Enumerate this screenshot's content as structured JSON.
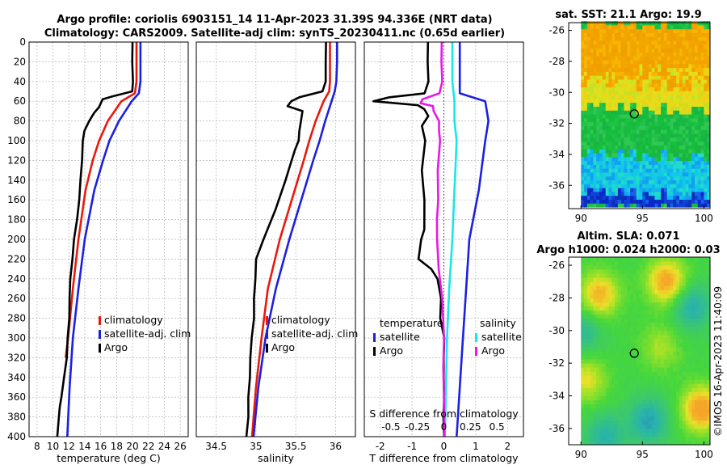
{
  "header": {
    "line1": "Argo profile: coriolis 6903151_14 11-Apr-2023 31.39S 94.336E (NRT data)",
    "line2": "Climatology: CARS2009. Satellite-adj clim: synTS_20230411.nc (0.65d earlier)"
  },
  "credit": "©IMOS 16-Apr-2023 11:40:09",
  "colors": {
    "argo": "#000000",
    "climatology": "#e8190c",
    "satellite": "#1c20e0",
    "s_satellite": "#19e6e6",
    "s_argo": "#e619e6",
    "grid": "#b4b4b4"
  },
  "chart_data": [
    {
      "id": "temperature",
      "type": "line",
      "xlabel": "temperature (deg C)",
      "ylabel": "depth",
      "xlim": [
        7,
        27
      ],
      "ylim": [
        0,
        400
      ],
      "y_inverted": true,
      "xticks": [
        8,
        10,
        12,
        14,
        16,
        18,
        20,
        22,
        24,
        26
      ],
      "yticks": [
        0,
        20,
        40,
        60,
        80,
        100,
        120,
        140,
        160,
        180,
        200,
        220,
        240,
        260,
        280,
        300,
        320,
        340,
        360,
        380,
        400
      ],
      "grid": true,
      "legend": {
        "position": "bottom-right",
        "entries": [
          "climatology",
          "satellite-adj. clim",
          "Argo"
        ]
      },
      "series": [
        {
          "name": "climatology",
          "color": "#e8190c",
          "depth": [
            0,
            20,
            40,
            52,
            60,
            80,
            100,
            120,
            150,
            200,
            250,
            300,
            320
          ],
          "values": [
            20.5,
            20.5,
            20.5,
            20.3,
            18.6,
            16.9,
            15.8,
            15.0,
            14.1,
            13.2,
            12.5,
            11.9,
            11.6
          ]
        },
        {
          "name": "satellite-adj. clim",
          "color": "#1c20e0",
          "depth": [
            0,
            20,
            40,
            52,
            60,
            80,
            100,
            120,
            150,
            200,
            250,
            300,
            350,
            400
          ],
          "values": [
            21.0,
            21.0,
            21.0,
            20.8,
            19.9,
            18.3,
            17.1,
            16.3,
            15.2,
            14.0,
            13.2,
            12.5,
            12.1,
            11.8
          ]
        },
        {
          "name": "Argo",
          "color": "#000000",
          "depth": [
            0,
            20,
            40,
            50,
            55,
            58,
            62,
            66,
            72,
            80,
            90,
            100,
            120,
            140,
            160,
            180,
            200,
            220,
            240,
            260,
            280,
            300,
            320,
            340,
            360,
            370,
            380,
            390,
            400
          ],
          "values": [
            20.0,
            20.0,
            20.0,
            19.9,
            17.5,
            16.2,
            16.0,
            15.8,
            15.2,
            14.6,
            14.0,
            13.8,
            13.6,
            13.5,
            13.3,
            13.0,
            12.7,
            12.4,
            12.2,
            12.1,
            12.0,
            11.9,
            11.7,
            11.4,
            11.1,
            10.9,
            10.8,
            10.7,
            10.6
          ]
        }
      ]
    },
    {
      "id": "salinity",
      "type": "line",
      "xlabel": "salinity",
      "xlim": [
        34.25,
        36.25
      ],
      "ylim": [
        0,
        400
      ],
      "y_inverted": true,
      "xticks": [
        34.5,
        35,
        35.5,
        36
      ],
      "xtick_labels": [
        "34.5",
        "35",
        "35.5",
        "36"
      ],
      "grid": true,
      "legend": {
        "position": "bottom-right",
        "entries": [
          "climatology",
          "satellite-adj. clim",
          "Argo"
        ]
      },
      "series": [
        {
          "name": "climatology",
          "color": "#e8190c",
          "depth": [
            0,
            20,
            40,
            50,
            60,
            80,
            100,
            120,
            160,
            200,
            250,
            300,
            350,
            400
          ],
          "values": [
            35.93,
            35.93,
            35.93,
            35.92,
            35.85,
            35.75,
            35.67,
            35.6,
            35.45,
            35.3,
            35.15,
            35.07,
            35.0,
            34.95
          ]
        },
        {
          "name": "satellite-adj. clim",
          "color": "#1c20e0",
          "depth": [
            0,
            20,
            40,
            50,
            60,
            80,
            100,
            120,
            160,
            200,
            250,
            300,
            350,
            400
          ],
          "values": [
            36.02,
            36.02,
            36.01,
            35.99,
            35.95,
            35.87,
            35.8,
            35.72,
            35.57,
            35.42,
            35.25,
            35.12,
            35.03,
            34.97
          ]
        },
        {
          "name": "Argo",
          "color": "#000000",
          "depth": [
            0,
            20,
            40,
            50,
            56,
            60,
            65,
            70,
            80,
            90,
            100,
            110,
            140,
            170,
            200,
            220,
            240,
            260,
            280,
            300,
            320,
            340,
            360,
            380,
            400
          ],
          "values": [
            35.88,
            35.88,
            35.87,
            35.83,
            35.55,
            35.45,
            35.4,
            35.58,
            35.56,
            35.54,
            35.53,
            35.48,
            35.37,
            35.25,
            35.1,
            35.0,
            34.99,
            34.98,
            34.97,
            34.95,
            34.93,
            34.92,
            34.91,
            34.9,
            34.88
          ]
        }
      ]
    },
    {
      "id": "difference",
      "type": "line",
      "xlabel": "T difference from climatology",
      "top_label": "S difference from climatology",
      "xlim": [
        -2.5,
        2.5
      ],
      "ylim": [
        0,
        400
      ],
      "y_inverted": true,
      "xticks": [
        -2,
        -1,
        0,
        1,
        2
      ],
      "xtick_labels": [
        "-2",
        "-1",
        "0",
        "1",
        "2"
      ],
      "s_xticks": [
        -0.5,
        -0.25,
        0,
        0.25,
        0.5
      ],
      "s_xtick_labels": [
        "-0.5",
        "-0.25",
        "0",
        "0.25",
        "0.5"
      ],
      "grid": true,
      "zero_line": true,
      "legend": {
        "position": "bottom",
        "temperature_header": "temperature",
        "salinity_header": "salinity",
        "entries": [
          "satellite",
          "Argo",
          "satellite",
          "Argo"
        ]
      },
      "series": [
        {
          "name": "T satellite",
          "color": "#1c20e0",
          "depth": [
            0,
            20,
            40,
            52,
            60,
            80,
            100,
            150,
            200,
            250,
            300,
            350,
            400
          ],
          "values": [
            0.5,
            0.5,
            0.5,
            0.5,
            1.3,
            1.4,
            1.3,
            1.1,
            0.8,
            0.7,
            0.6,
            0.5,
            0.4
          ]
        },
        {
          "name": "T Argo",
          "color": "#000000",
          "depth": [
            0,
            20,
            40,
            52,
            56,
            60,
            64,
            68,
            75,
            85,
            100,
            130,
            160,
            190,
            200,
            220,
            230,
            240,
            260,
            280,
            300,
            320,
            340,
            360,
            380,
            400
          ],
          "values": [
            -0.5,
            -0.5,
            -0.5,
            -0.6,
            -1.7,
            -2.2,
            -0.8,
            -0.6,
            -0.5,
            -0.7,
            -0.6,
            -0.7,
            -0.6,
            -0.6,
            -0.7,
            -0.8,
            -0.4,
            -0.2,
            -0.1,
            -0.1,
            0.0,
            0.0,
            0.0,
            0.0,
            0.0,
            0.0
          ]
        },
        {
          "name": "S satellite",
          "color": "#19e6e6",
          "depth": [
            0,
            20,
            40,
            60,
            80,
            100,
            150,
            200,
            250,
            300,
            350,
            400
          ],
          "values": [
            0.08,
            0.08,
            0.08,
            0.1,
            0.1,
            0.12,
            0.1,
            0.08,
            0.05,
            0.03,
            0.02,
            0.01
          ]
        },
        {
          "name": "S Argo",
          "color": "#e619e6",
          "depth": [
            0,
            20,
            40,
            52,
            58,
            62,
            65,
            70,
            80,
            90,
            100,
            130,
            160,
            180,
            200,
            230,
            260,
            300,
            330,
            360,
            400
          ],
          "values": [
            -0.02,
            -0.02,
            -0.02,
            -0.04,
            -0.2,
            -0.22,
            -0.1,
            -0.1,
            -0.05,
            -0.05,
            -0.04,
            -0.06,
            -0.05,
            -0.07,
            -0.06,
            -0.05,
            -0.02,
            0.0,
            -0.01,
            0.0,
            0.0
          ]
        }
      ]
    },
    {
      "id": "sst-map",
      "type": "heatmap",
      "title": "sat. SST: 21.1 Argo: 19.9",
      "xlim": [
        89,
        100.5
      ],
      "ylim": [
        -37.5,
        -25.5
      ],
      "xticks": [
        90,
        95,
        100
      ],
      "xtick_labels": [
        "90",
        "95",
        "100"
      ],
      "yticks": [
        -36,
        -34,
        -32,
        -30,
        -28,
        -26
      ],
      "ytick_labels": [
        "-36",
        "-34",
        "-32",
        "-30",
        "-28",
        "-26"
      ],
      "data_xlim": [
        90,
        100.3
      ],
      "data_ylim": [
        -37.4,
        -25.6
      ],
      "marker": {
        "lon": 94.336,
        "lat": -31.39
      },
      "color_bands": [
        {
          "lat": [
            -29.5,
            -25.6
          ],
          "color": "orange"
        },
        {
          "lat": [
            -31.0,
            -29.5
          ],
          "color": "yellow"
        },
        {
          "lat": [
            -34.0,
            -31.0
          ],
          "color": "green"
        },
        {
          "lat": [
            -36.5,
            -34.0
          ],
          "color": "cyan"
        },
        {
          "lat": [
            -37.4,
            -36.5
          ],
          "color": "blue"
        }
      ]
    },
    {
      "id": "sla-map",
      "type": "heatmap",
      "title_line1": "Altim. SLA: 0.071",
      "title_line2": "Argo h1000: 0.024 h2000: 0.03",
      "xlim": [
        89,
        100.5
      ],
      "ylim": [
        -37,
        -25.5
      ],
      "xticks": [
        90,
        95,
        100
      ],
      "xtick_labels": [
        "90",
        "95",
        "100"
      ],
      "yticks": [
        -36,
        -34,
        -32,
        -30,
        -28,
        -26
      ],
      "ytick_labels": [
        "-36",
        "-34",
        "-32",
        "-30",
        "-28",
        "-26"
      ],
      "data_xlim": [
        90,
        100.3
      ],
      "data_ylim": [
        -37,
        -25.5
      ],
      "marker": {
        "lon": 94.336,
        "lat": -31.39
      },
      "blobs": [
        {
          "lon": 91.5,
          "lat": -27.8,
          "value": 0.7
        },
        {
          "lon": 97.0,
          "lat": -27.0,
          "value": 0.8
        },
        {
          "lon": 99.8,
          "lat": -34.8,
          "value": 0.85
        },
        {
          "lon": 90.5,
          "lat": -33.0,
          "value": 0.5
        },
        {
          "lon": 95.5,
          "lat": -35.5,
          "value": -0.6
        },
        {
          "lon": 99.0,
          "lat": -28.5,
          "value": -0.55
        },
        {
          "lon": 92.0,
          "lat": -36.5,
          "value": -0.5
        },
        {
          "lon": 96.5,
          "lat": -31.0,
          "value": 0.35
        },
        {
          "lon": 90.2,
          "lat": -30.0,
          "value": -0.4
        }
      ]
    }
  ]
}
